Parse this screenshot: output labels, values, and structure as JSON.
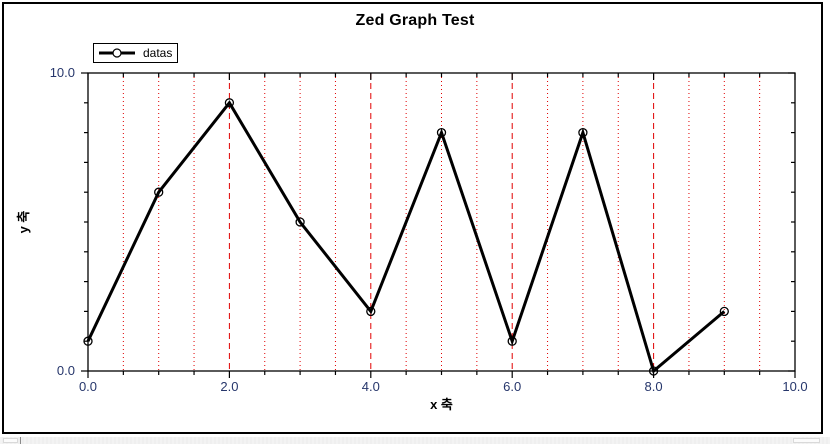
{
  "chart_data": {
    "type": "line",
    "title": "Zed Graph Test",
    "xlabel": "x 축",
    "ylabel": "y 축",
    "x": [
      0,
      1,
      2,
      3,
      4,
      5,
      6,
      7,
      8,
      9
    ],
    "series": [
      {
        "name": "datas",
        "values": [
          1,
          6,
          9,
          5,
          2,
          8,
          1,
          8,
          0,
          2
        ],
        "color": "#000000",
        "marker": "open-circle",
        "line_width": 3
      }
    ],
    "xlim": [
      0,
      10
    ],
    "ylim": [
      0,
      10
    ],
    "x_major_step": 2,
    "x_minor_step": 0.5,
    "y_major_step": 10,
    "y_minor_step": 1,
    "x_tick_labels": [
      "0.0",
      "2.0",
      "4.0",
      "6.0",
      "8.0",
      "10.0"
    ],
    "y_tick_labels": [
      "0.0",
      "10.0"
    ],
    "grid": {
      "vertical_major": "dashed",
      "vertical_minor": "dotted",
      "horizontal": "none",
      "color": "#e00000"
    },
    "legend": {
      "position": "top-left",
      "entries": [
        "datas"
      ]
    }
  },
  "colors": {
    "frame": "#000000",
    "tick_label": "#26366b",
    "axis_title": "#000000",
    "title": "#000000",
    "background": "#ffffff",
    "grid_red": "#e00000",
    "line": "#000000"
  }
}
